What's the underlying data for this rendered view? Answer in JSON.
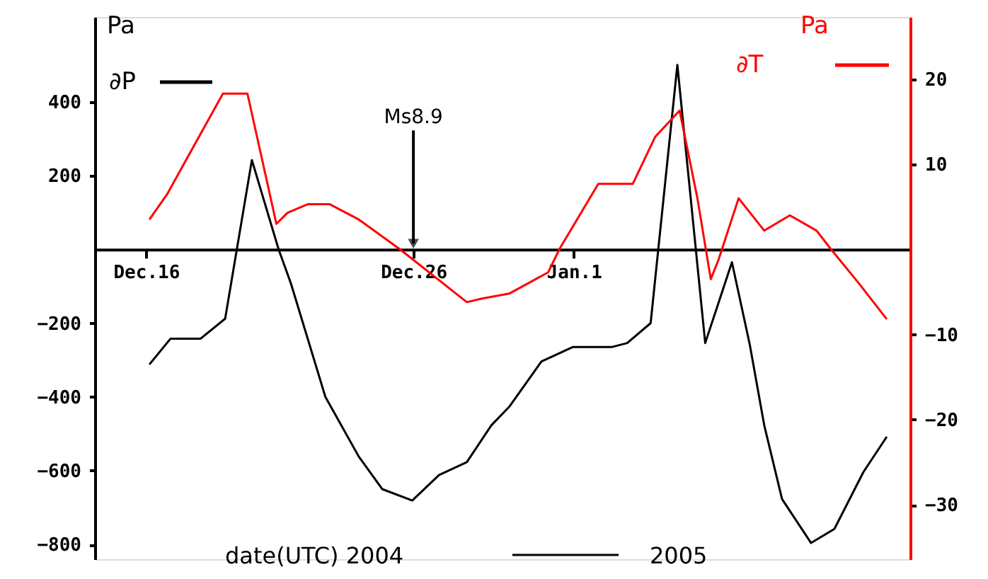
{
  "chart_data": {
    "type": "line",
    "ylabel": "Pa",
    "y2label": "Pa",
    "xlabel": "date(UTC)  2004",
    "annotations": [
      {
        "text": "Ms8.9",
        "x": "2004-12-26",
        "y": 0
      },
      "2005"
    ],
    "xlim": [
      "2004-12-14T02:00",
      "2005-01-13T14:00"
    ],
    "xticks": [
      {
        "value": "2004-12-16",
        "label": "Dec.16"
      },
      {
        "value": "2004-12-26",
        "label": "Dec.26"
      },
      {
        "value": "2005-01-01",
        "label": "Jan.1"
      }
    ],
    "ylim": [
      -840,
      630
    ],
    "yticks": [
      400,
      200,
      -200,
      -400,
      -600,
      -800
    ],
    "y2lim": [
      -36.4,
      27.3
    ],
    "y2ticks": [
      20,
      10,
      -10,
      -20,
      -30
    ],
    "grid": false,
    "marker": "none",
    "line_style": "solid",
    "series": [
      {
        "name": "∂P",
        "color": "#000000",
        "x": [
          "2004-12-16T03:00",
          "2004-12-16T22:00",
          "2004-12-18T01:00",
          "2004-12-18T23:00",
          "2004-12-19T23:00",
          "2004-12-20T23:00",
          "2004-12-21T10:00",
          "2004-12-22T17:00",
          "2004-12-23T23:00",
          "2004-12-24T20:00",
          "2004-12-25T23:00",
          "2004-12-26T23:00",
          "2004-12-28T00:00",
          "2004-12-28T22:00",
          "2004-12-29T14:00",
          "2004-12-30T19:00",
          "2004-12-31T23:00",
          "2005-01-02T10:00",
          "2005-01-03T00:00",
          "2005-01-03T21:00",
          "2005-01-04T21:00",
          "2005-01-05T22:00",
          "2005-01-06T22:00",
          "2005-01-07T14:00",
          "2005-01-08T03:00",
          "2005-01-08T19:00",
          "2005-01-09T21:00",
          "2005-01-10T18:00",
          "2005-01-11T20:00",
          "2005-01-12T17:00"
        ],
        "values": [
          -312,
          -242,
          -242,
          -188,
          242,
          0,
          -92,
          -400,
          -562,
          -650,
          -681,
          -612,
          -577,
          -477,
          -427,
          -304,
          -265,
          -265,
          -254,
          -200,
          500,
          -254,
          -35,
          -258,
          -477,
          -677,
          -796,
          -758,
          -604,
          -508
        ]
      },
      {
        "name": "∂T",
        "color": "#ff0000",
        "axis": "y2",
        "x": [
          "2004-12-16T03:00",
          "2004-12-16T19:00",
          "2004-12-18T21:00",
          "2004-12-19T19:00",
          "2004-12-20T21:00",
          "2004-12-21T07:00",
          "2004-12-22T01:00",
          "2004-12-22T21:00",
          "2004-12-23T23:00",
          "2004-12-25T12:00",
          "2004-12-28T00:00",
          "2004-12-28T13:00",
          "2004-12-29T14:00",
          "2004-12-31T01:00",
          "2004-12-31T11:00",
          "2005-01-01T22:00",
          "2005-01-03T05:00",
          "2005-01-04T01:00",
          "2005-01-04T23:00",
          "2005-01-05T15:00",
          "2005-01-06T03:00",
          "2005-01-06T10:00",
          "2005-01-07T04:00",
          "2005-01-08T03:00",
          "2005-01-09T02:00",
          "2005-01-10T02:00",
          "2005-01-10T15:00",
          "2005-01-11T16:00",
          "2005-01-12T17:00"
        ],
        "values": [
          3.5,
          6.5,
          18.3,
          18.3,
          3.0,
          4.3,
          5.3,
          5.3,
          3.5,
          0,
          -6.2,
          -5.8,
          -5.2,
          -2.7,
          0,
          7.7,
          7.7,
          13.2,
          16.3,
          6,
          -3.5,
          -1.2,
          6,
          2.2,
          4,
          2.2,
          0,
          -4,
          -8.2
        ]
      }
    ]
  }
}
